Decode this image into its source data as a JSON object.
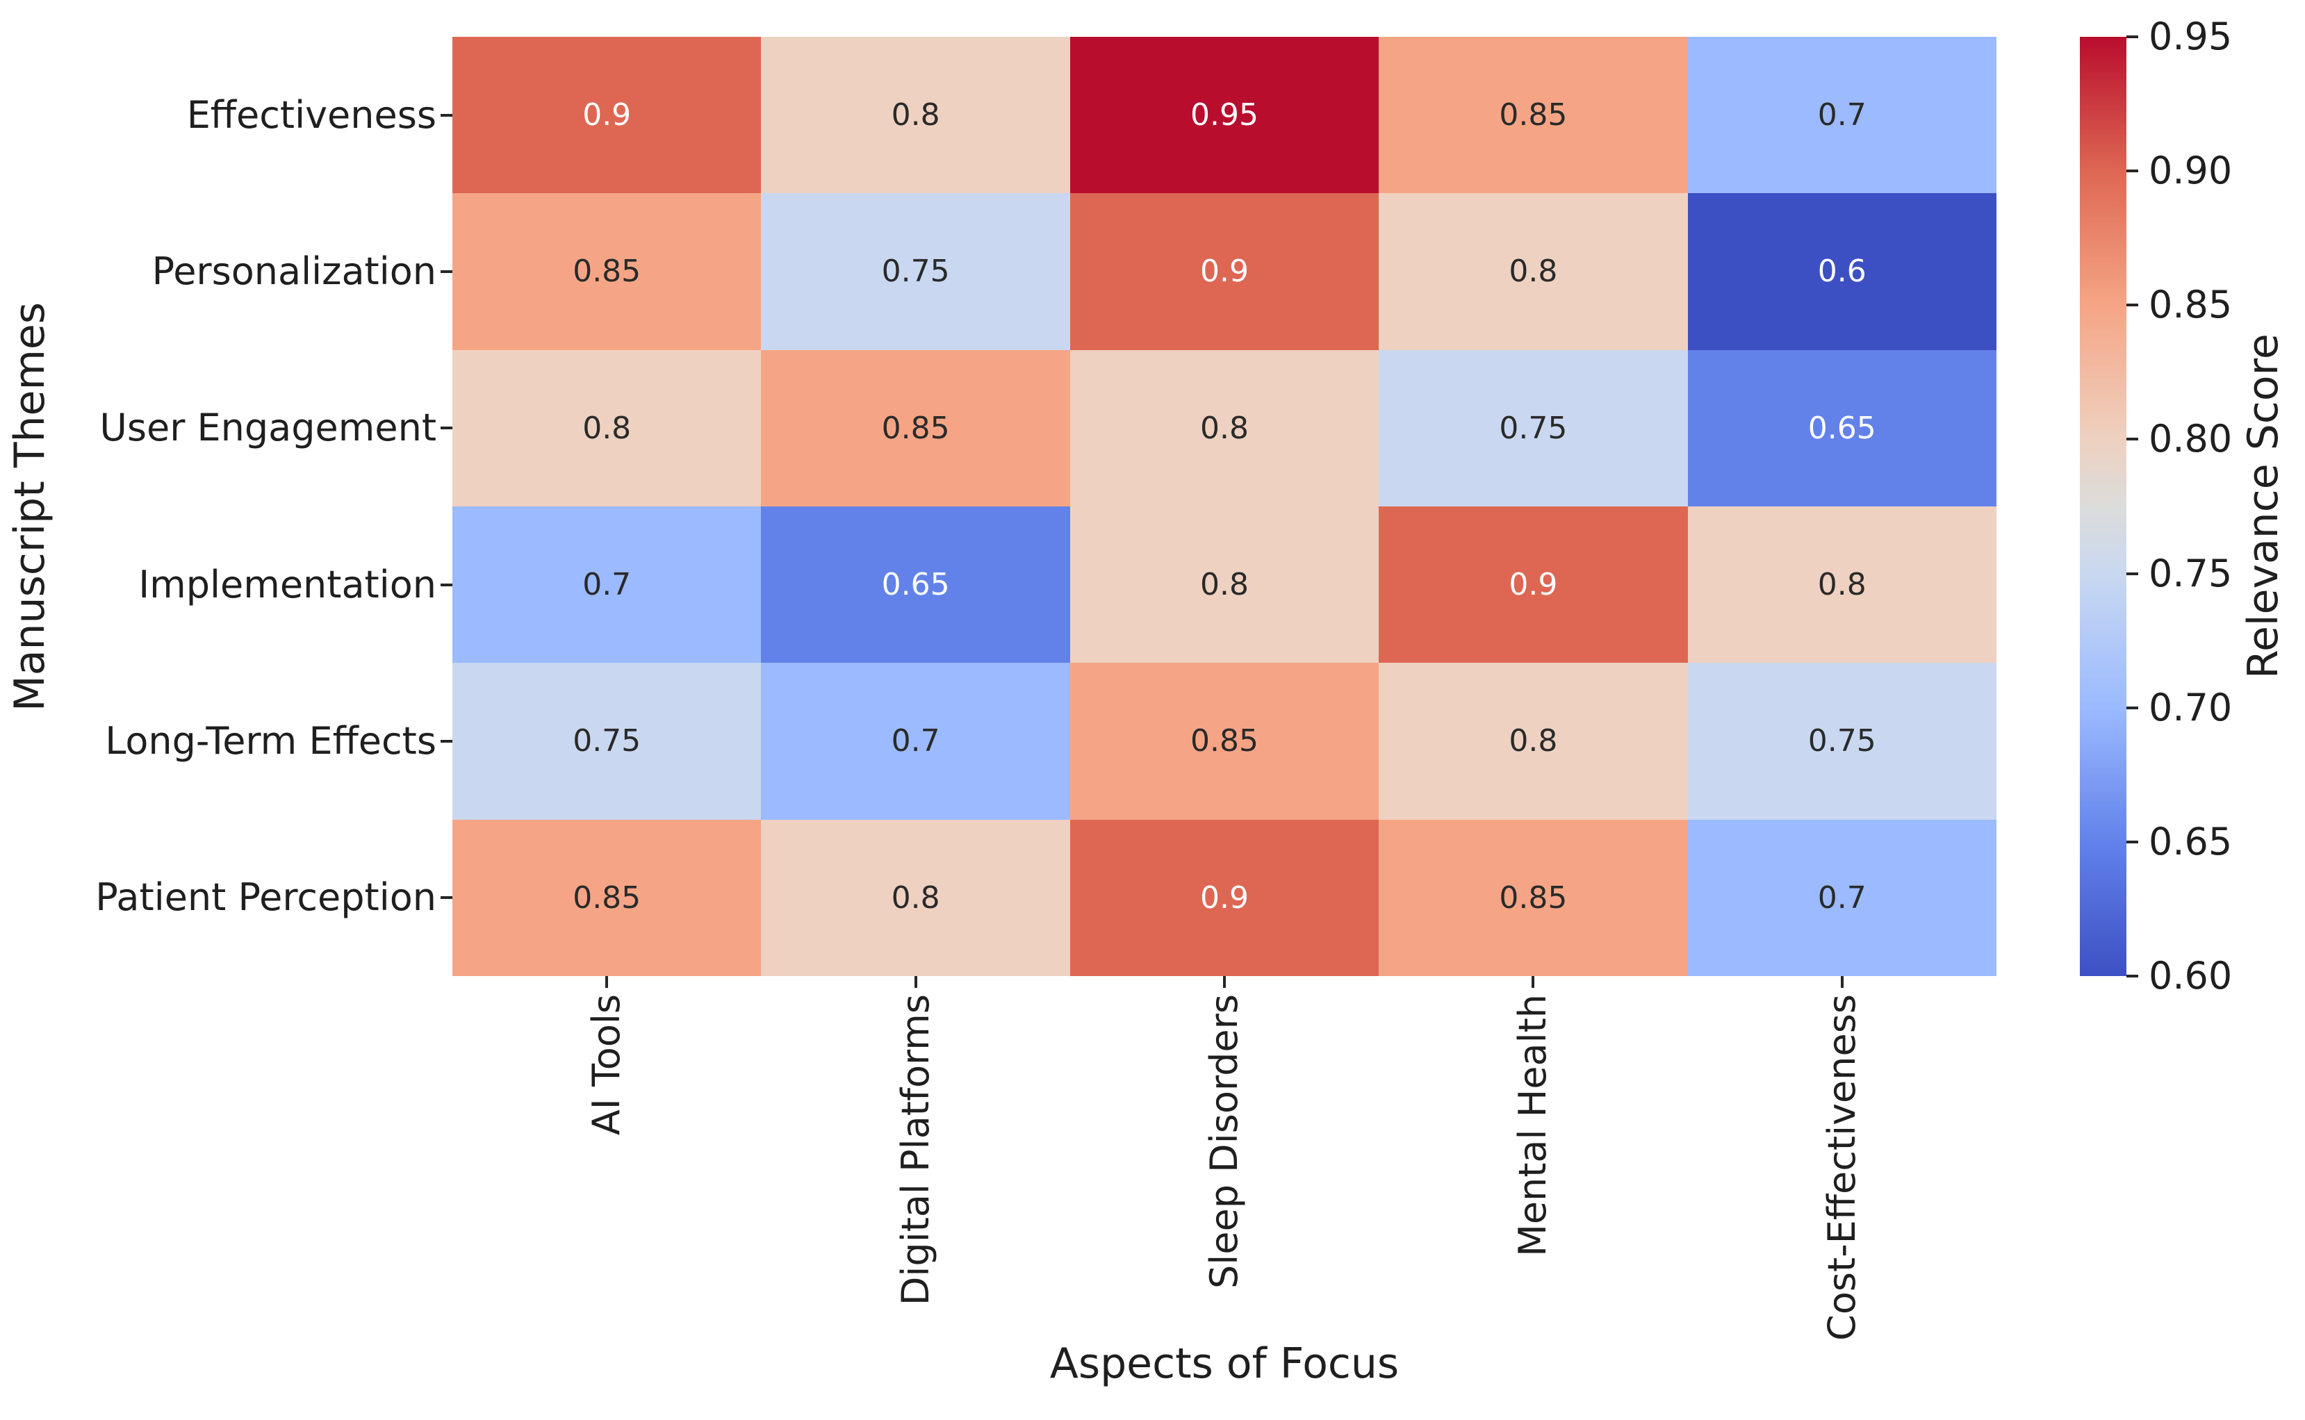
{
  "background": "#ffffff",
  "chart_data": {
    "type": "heatmap",
    "title": "",
    "xlabel": "Aspects of Focus",
    "ylabel": "Manuscript Themes",
    "colorbar_label": "Relevance Score",
    "categories_x": [
      "AI Tools",
      "Digital Platforms",
      "Sleep Disorders",
      "Mental Health",
      "Cost-Effectiveness"
    ],
    "categories_y": [
      "Effectiveness",
      "Personalization",
      "User Engagement",
      "Implementation",
      "Long-Term Effects",
      "Patient Perception"
    ],
    "values": [
      [
        0.9,
        0.8,
        0.95,
        0.85,
        0.7
      ],
      [
        0.85,
        0.75,
        0.9,
        0.8,
        0.6
      ],
      [
        0.8,
        0.85,
        0.8,
        0.75,
        0.65
      ],
      [
        0.7,
        0.65,
        0.8,
        0.9,
        0.8
      ],
      [
        0.75,
        0.7,
        0.85,
        0.8,
        0.75
      ],
      [
        0.85,
        0.8,
        0.9,
        0.85,
        0.7
      ]
    ],
    "vmin": 0.6,
    "vmax": 0.95,
    "colormap": "coolwarm",
    "colorbar_ticks": [
      "0.95",
      "0.90",
      "0.85",
      "0.80",
      "0.75",
      "0.70",
      "0.65",
      "0.60"
    ],
    "value_colors": {
      "0.6": "#3d50c3",
      "0.65": "#6282ea",
      "0.7": "#9bbaff",
      "0.75": "#c9d8f0",
      "0.8": "#eed1c0",
      "0.85": "#f5a585",
      "0.9": "#dd6753",
      "0.95": "#b90d2d"
    },
    "colorbar_stops": [
      {
        "pos": 0.0,
        "color": "#3d50c3"
      },
      {
        "pos": 0.1429,
        "color": "#6282ea"
      },
      {
        "pos": 0.2857,
        "color": "#9bbaff"
      },
      {
        "pos": 0.4286,
        "color": "#c9d8f0"
      },
      {
        "pos": 0.5,
        "color": "#dcdcdb"
      },
      {
        "pos": 0.5714,
        "color": "#eed1c0"
      },
      {
        "pos": 0.7143,
        "color": "#f5a585"
      },
      {
        "pos": 0.8571,
        "color": "#dd6753"
      },
      {
        "pos": 1.0,
        "color": "#b90d2d"
      }
    ],
    "white_text_values": [
      0.6,
      0.65,
      0.9,
      0.95
    ],
    "annot_dark_color": "#2a2a2a",
    "annot_light_color": "#ffffff",
    "axis_text_color": "#1f1f1f",
    "tick_mark_color": "#262626",
    "legend_position": "right-colorbar",
    "grid": false
  }
}
